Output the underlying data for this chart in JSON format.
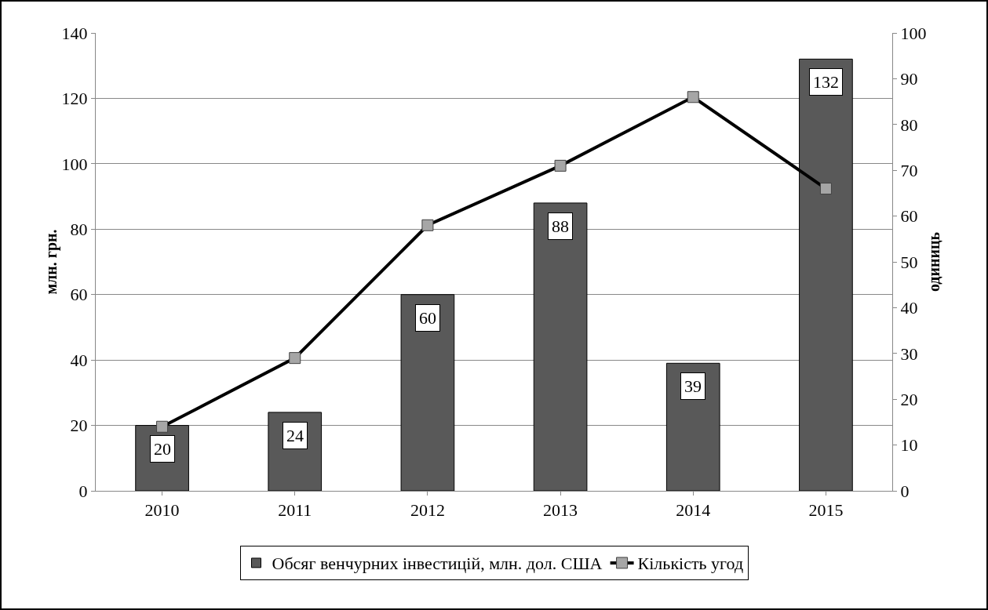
{
  "chart_data": {
    "type": "bar",
    "categories": [
      "2010",
      "2011",
      "2012",
      "2013",
      "2014",
      "2015"
    ],
    "series": [
      {
        "name": "Обсяг венчурних інвестицій, млн. дол. США",
        "color": "#595959",
        "values": [
          20,
          24,
          60,
          88,
          39,
          132
        ],
        "value_labels": [
          "20",
          "24",
          "60",
          "88",
          "39",
          "132"
        ]
      },
      {
        "name": "Кількість угод",
        "type": "line",
        "axis": "y2",
        "color": "#000000",
        "marker": "square",
        "values": [
          14,
          29,
          58,
          71,
          86,
          66
        ]
      }
    ],
    "ylabel": "млн. грн.",
    "y2label": "одиниць",
    "ylim": [
      0,
      140
    ],
    "yticks": [
      0,
      20,
      40,
      60,
      80,
      100,
      120,
      140
    ],
    "y2lim": [
      0,
      100
    ],
    "y2ticks": [
      0,
      10,
      20,
      30,
      40,
      50,
      60,
      70,
      80,
      90,
      100
    ],
    "grid": "y",
    "legend": "bottom"
  }
}
